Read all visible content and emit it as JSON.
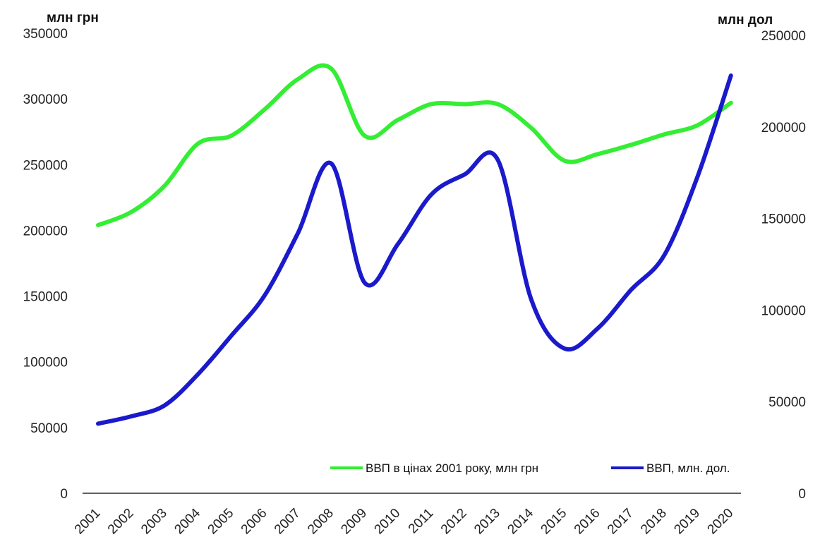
{
  "chart_data": {
    "type": "line",
    "x": [
      "2001",
      "2002",
      "2003",
      "2004",
      "2005",
      "2006",
      "2007",
      "2008",
      "2009",
      "2010",
      "2011",
      "2012",
      "2013",
      "2014",
      "2015",
      "2016",
      "2017",
      "2018",
      "2019",
      "2020"
    ],
    "left_axis_label": "млн грн",
    "right_axis_label": "млн дол",
    "left_ylim": [
      0,
      350000
    ],
    "right_ylim": [
      0,
      250000
    ],
    "left_ticks": [
      "0",
      "50000",
      "100000",
      "150000",
      "200000",
      "250000",
      "300000",
      "350000"
    ],
    "right_ticks": [
      "0",
      "50000",
      "100000",
      "150000",
      "200000",
      "250000"
    ],
    "legend_position": "bottom-right",
    "series": [
      {
        "name": "ВВП в цінах 2001 року, млн грн",
        "axis": "left",
        "color": "#33ee33",
        "values": [
          204000,
          214000,
          234000,
          266000,
          272000,
          292000,
          315000,
          323000,
          272000,
          284000,
          296000,
          296000,
          296000,
          278000,
          253000,
          258000,
          265000,
          273000,
          280000,
          297000
        ]
      },
      {
        "name": "ВВП, млн. дол.",
        "axis": "right",
        "color": "#1a1acc",
        "values": [
          38000,
          42000,
          48000,
          65000,
          86000,
          108000,
          142000,
          180000,
          115000,
          136000,
          163000,
          174000,
          182000,
          106000,
          79000,
          90000,
          111000,
          130000,
          173000,
          228000
        ]
      }
    ]
  }
}
